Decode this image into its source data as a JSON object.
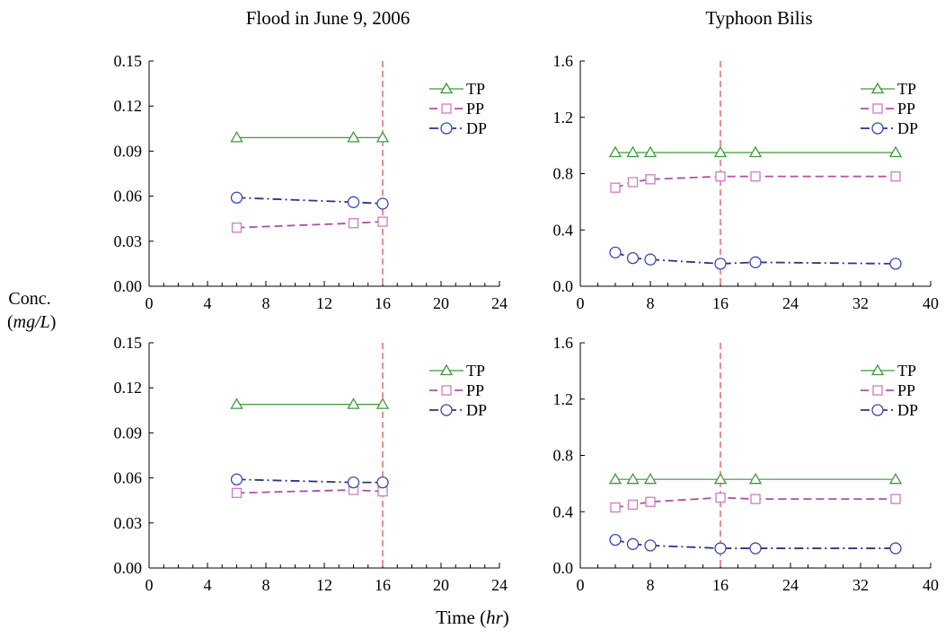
{
  "titles": {
    "left": "Flood in June 9, 2006",
    "right": "Typhoon Bilis"
  },
  "ylabel": {
    "line1": "Conc.",
    "unit": "mg/L"
  },
  "xlabel": {
    "text": "Time",
    "unit": "hr"
  },
  "legend_labels": [
    "TP",
    "PP",
    "DP"
  ],
  "colors": {
    "TP": "#3a9a3a",
    "PP": "#b0509f",
    "DP": "#2e3680",
    "marker_PP": "#d27ac4",
    "marker_DP": "#3a47b8",
    "vline": "#e04848"
  },
  "chart_data": [
    {
      "id": "top-left",
      "type": "line",
      "xlim": [
        0,
        24
      ],
      "xticks": [
        0,
        4,
        8,
        12,
        16,
        20,
        24
      ],
      "ylim": [
        0,
        0.15
      ],
      "yticks": [
        0.0,
        0.03,
        0.06,
        0.09,
        0.12,
        0.15
      ],
      "ydecimals": 2,
      "vline": 16,
      "legend": "top-right",
      "series": [
        {
          "name": "TP",
          "x": [
            6,
            14,
            16
          ],
          "y": [
            0.099,
            0.099,
            0.099
          ]
        },
        {
          "name": "PP",
          "x": [
            6,
            14,
            16
          ],
          "y": [
            0.039,
            0.042,
            0.043
          ]
        },
        {
          "name": "DP",
          "x": [
            6,
            14,
            16
          ],
          "y": [
            0.059,
            0.056,
            0.055
          ]
        }
      ]
    },
    {
      "id": "top-right",
      "type": "line",
      "xlim": [
        0,
        40
      ],
      "xticks": [
        0,
        8,
        16,
        24,
        32,
        40
      ],
      "ylim": [
        0,
        1.6
      ],
      "yticks": [
        0.0,
        0.4,
        0.8,
        1.2,
        1.6
      ],
      "ydecimals": 1,
      "vline": 16,
      "legend": "top-right",
      "series": [
        {
          "name": "TP",
          "x": [
            4,
            6,
            8,
            16,
            20,
            36
          ],
          "y": [
            0.95,
            0.95,
            0.95,
            0.95,
            0.95,
            0.95
          ]
        },
        {
          "name": "PP",
          "x": [
            4,
            6,
            8,
            16,
            20,
            36
          ],
          "y": [
            0.7,
            0.74,
            0.76,
            0.78,
            0.78,
            0.78
          ]
        },
        {
          "name": "DP",
          "x": [
            4,
            6,
            8,
            16,
            20,
            36
          ],
          "y": [
            0.24,
            0.2,
            0.19,
            0.16,
            0.17,
            0.16
          ]
        }
      ]
    },
    {
      "id": "bottom-left",
      "type": "line",
      "xlim": [
        0,
        24
      ],
      "xticks": [
        0,
        4,
        8,
        12,
        16,
        20,
        24
      ],
      "ylim": [
        0,
        0.15
      ],
      "yticks": [
        0.0,
        0.03,
        0.06,
        0.09,
        0.12,
        0.15
      ],
      "ydecimals": 2,
      "vline": 16,
      "legend": "top-right",
      "series": [
        {
          "name": "TP",
          "x": [
            6,
            14,
            16
          ],
          "y": [
            0.109,
            0.109,
            0.109
          ]
        },
        {
          "name": "PP",
          "x": [
            6,
            14,
            16
          ],
          "y": [
            0.05,
            0.052,
            0.051
          ]
        },
        {
          "name": "DP",
          "x": [
            6,
            14,
            16
          ],
          "y": [
            0.059,
            0.057,
            0.057
          ]
        }
      ]
    },
    {
      "id": "bottom-right",
      "type": "line",
      "xlim": [
        0,
        40
      ],
      "xticks": [
        0,
        8,
        16,
        24,
        32,
        40
      ],
      "ylim": [
        0,
        1.6
      ],
      "yticks": [
        0.0,
        0.4,
        0.8,
        1.2,
        1.6
      ],
      "ydecimals": 1,
      "vline": 16,
      "legend": "top-right",
      "series": [
        {
          "name": "TP",
          "x": [
            4,
            6,
            8,
            16,
            20,
            36
          ],
          "y": [
            0.63,
            0.63,
            0.63,
            0.63,
            0.63,
            0.63
          ]
        },
        {
          "name": "PP",
          "x": [
            4,
            6,
            8,
            16,
            20,
            36
          ],
          "y": [
            0.43,
            0.45,
            0.47,
            0.5,
            0.49,
            0.49
          ]
        },
        {
          "name": "DP",
          "x": [
            4,
            6,
            8,
            16,
            20,
            36
          ],
          "y": [
            0.2,
            0.17,
            0.16,
            0.14,
            0.14,
            0.14
          ]
        }
      ]
    }
  ]
}
